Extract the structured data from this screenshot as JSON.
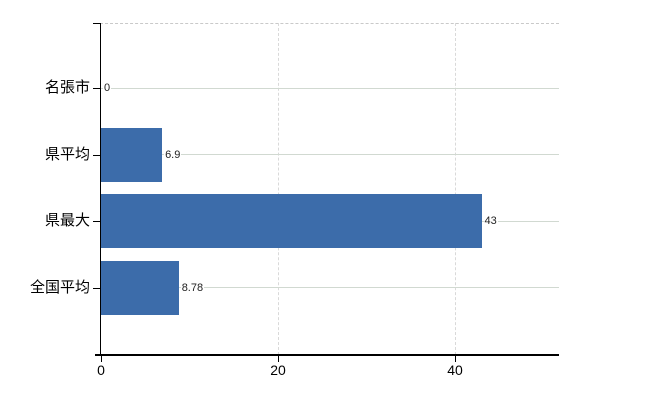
{
  "chart_data": {
    "type": "bar",
    "orientation": "horizontal",
    "title": "",
    "categories": [
      "名張市",
      "県平均",
      "県最大",
      "全国平均"
    ],
    "values": [
      0,
      6.9,
      43,
      8.78
    ],
    "value_labels": [
      "0",
      "6.9",
      "43",
      "8.78"
    ],
    "x_ticks": [
      0,
      20,
      40
    ],
    "x_tick_labels": [
      "0",
      "20",
      "40"
    ],
    "xlim": [
      0,
      51.8
    ],
    "grid": true,
    "legend": false,
    "bar_color": "#3c6caa",
    "h_gridline_color": "#d1d9d1",
    "v_gridline_color": "#d9d9d9",
    "top_border_color": "#c9c9c9",
    "axis_color": "#000000",
    "label_color": "#000000"
  }
}
